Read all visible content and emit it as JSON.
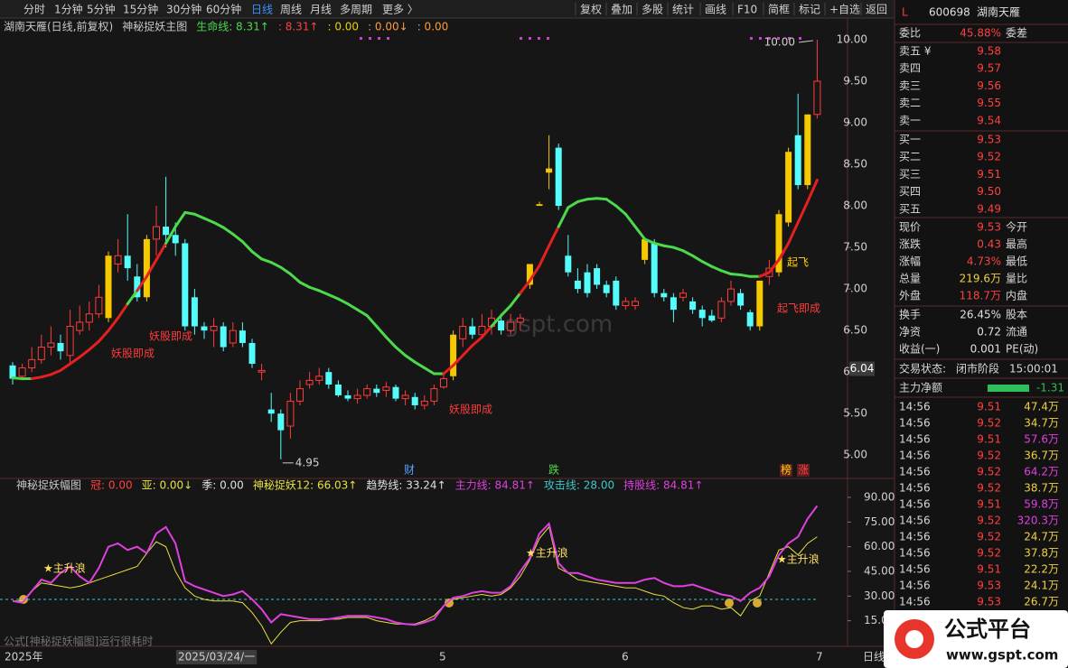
{
  "toolbar": {
    "left": [
      "分时",
      "1分钟",
      "5分钟",
      "15分钟",
      "30分钟",
      "60分钟",
      "日线",
      "周线",
      "月线",
      "多周期",
      "更多 〉"
    ],
    "active": 6,
    "right": [
      "复权",
      "叠加",
      "多股",
      "统计",
      "画线",
      "F10",
      "简框",
      "标记",
      "+自选",
      "返回"
    ]
  },
  "chart_data": [
    {
      "type": "candlestick",
      "header": [
        {
          "text": "湖南天雁(日线,前复权)",
          "color": "#c8c8c8"
        },
        {
          "text": "神秘捉妖主图",
          "color": "#c8c8c8"
        },
        {
          "text": "生命线: 8.31↑",
          "color": "#4cd94c"
        },
        {
          "text": ": 8.31↑",
          "color": "#ff4040"
        },
        {
          "text": ": 0.00",
          "color": "#e8d000"
        },
        {
          "text": ": 0.00↓",
          "color": "#ff9a3c"
        },
        {
          "text": ": 0.00",
          "color": "#ff9a3c"
        }
      ],
      "ylim": [
        4.72,
        10.26
      ],
      "yticks": [
        {
          "value": 5,
          "label": "5.00"
        },
        {
          "value": 5.5,
          "label": "5.50"
        },
        {
          "value": 6,
          "label": "6.00"
        },
        {
          "value": 6.5,
          "label": "6.50"
        },
        {
          "value": 7,
          "label": "7.00"
        },
        {
          "value": 7.5,
          "label": "7.50"
        },
        {
          "value": 8,
          "label": "8.00"
        },
        {
          "value": 8.5,
          "label": "8.50"
        },
        {
          "value": 9,
          "label": "9.00"
        },
        {
          "value": 9.5,
          "label": "9.50"
        },
        {
          "value": 10,
          "label": "10.00"
        }
      ],
      "open": [
        6.08,
        5.95,
        6.05,
        6.15,
        6.3,
        6.35,
        6.2,
        6.5,
        6.6,
        6.7,
        6.65,
        7.3,
        7.4,
        7.15,
        6.9,
        7.6,
        7.75,
        7.65,
        7.55,
        6.9,
        6.55,
        6.5,
        6.55,
        6.35,
        6.5,
        6.35,
        6.0,
        5.55,
        5.5,
        5.35,
        5.65,
        5.85,
        5.9,
        6.0,
        5.85,
        5.72,
        5.68,
        5.72,
        5.8,
        5.78,
        5.82,
        5.68,
        5.7,
        5.6,
        5.65,
        5.82,
        5.95,
        6.4,
        6.55,
        6.45,
        6.55,
        6.62,
        6.5,
        6.6,
        7.05,
        8.0,
        8.4,
        8.7,
        7.4,
        7.1,
        7.2,
        7.25,
        7.05,
        7.1,
        6.8,
        6.8,
        7.35,
        7.55,
        6.95,
        6.9,
        6.9,
        6.85,
        6.75,
        6.68,
        6.65,
        6.85,
        6.95,
        6.72,
        6.55,
        7.15,
        7.2,
        7.8,
        8.85,
        8.25,
        9.1
      ],
      "close": [
        5.92,
        6.05,
        6.15,
        6.3,
        6.35,
        6.25,
        6.55,
        6.6,
        6.7,
        6.9,
        7.4,
        7.4,
        7.25,
        6.9,
        7.6,
        7.75,
        7.65,
        7.55,
        6.55,
        6.55,
        6.5,
        6.55,
        6.3,
        6.5,
        6.35,
        6.1,
        6.02,
        5.5,
        5.3,
        5.65,
        5.8,
        5.9,
        5.95,
        5.85,
        5.72,
        5.68,
        5.72,
        5.8,
        5.75,
        5.82,
        5.68,
        5.72,
        5.6,
        5.65,
        5.8,
        5.92,
        6.45,
        6.55,
        6.45,
        6.55,
        6.65,
        6.5,
        6.6,
        6.65,
        7.3,
        8.02,
        8.45,
        8.0,
        7.2,
        7.0,
        6.95,
        7.05,
        6.95,
        6.8,
        6.85,
        6.85,
        7.6,
        6.95,
        6.9,
        6.75,
        6.95,
        6.75,
        6.65,
        6.62,
        6.85,
        7.0,
        6.8,
        6.55,
        7.1,
        7.25,
        7.9,
        8.65,
        8.25,
        9.1,
        9.5
      ],
      "low": [
        5.85,
        5.9,
        6.0,
        6.1,
        6.2,
        6.15,
        6.1,
        6.45,
        6.5,
        6.65,
        6.6,
        7.2,
        7.1,
        6.85,
        6.85,
        7.4,
        7.5,
        7.4,
        6.5,
        6.45,
        6.4,
        6.3,
        6.25,
        6.3,
        6.3,
        6.05,
        5.9,
        5.4,
        4.95,
        5.2,
        5.6,
        5.8,
        5.85,
        5.8,
        5.7,
        5.65,
        5.62,
        5.68,
        5.7,
        5.7,
        5.65,
        5.6,
        5.55,
        5.55,
        5.6,
        5.8,
        5.9,
        6.3,
        6.4,
        6.4,
        6.45,
        6.45,
        6.45,
        6.5,
        7.0,
        8.0,
        8.2,
        7.95,
        7.15,
        6.95,
        6.9,
        7.0,
        6.9,
        6.75,
        6.75,
        6.75,
        7.3,
        6.9,
        6.85,
        6.6,
        6.85,
        6.7,
        6.55,
        6.6,
        6.6,
        6.8,
        6.75,
        6.5,
        6.5,
        7.05,
        7.15,
        7.75,
        8.2,
        8.2,
        9.05
      ],
      "high": [
        6.12,
        6.1,
        6.3,
        6.45,
        6.55,
        6.45,
        6.75,
        6.8,
        6.85,
        7.05,
        7.45,
        7.6,
        7.9,
        7.3,
        7.65,
        8.0,
        8.35,
        7.8,
        7.6,
        7.0,
        6.6,
        6.65,
        6.6,
        6.6,
        6.6,
        6.4,
        6.1,
        5.75,
        5.55,
        5.75,
        5.9,
        6.0,
        6.05,
        6.05,
        5.9,
        5.78,
        5.8,
        5.85,
        5.85,
        5.88,
        5.85,
        5.78,
        5.75,
        5.72,
        5.85,
        6.0,
        6.5,
        6.65,
        6.65,
        6.7,
        6.75,
        6.7,
        6.7,
        6.7,
        7.3,
        8.05,
        8.85,
        8.75,
        7.65,
        7.25,
        7.3,
        7.3,
        7.1,
        7.15,
        6.9,
        6.9,
        7.6,
        7.6,
        7.0,
        6.95,
        7.0,
        6.9,
        6.8,
        6.75,
        6.9,
        7.1,
        7.0,
        6.75,
        7.1,
        7.35,
        7.95,
        8.7,
        9.35,
        9.1,
        10.0
      ],
      "signal_candles": [
        10,
        14,
        46,
        54,
        55,
        56,
        66,
        78,
        80,
        81,
        83
      ],
      "signal_color": "#f5c800",
      "up_color": "#ff3b3b",
      "down_color": "#54fcfc",
      "life_line": {
        "values": [
          5.93,
          5.92,
          5.92,
          5.94,
          5.97,
          6.02,
          6.1,
          6.18,
          6.27,
          6.37,
          6.5,
          6.65,
          6.82,
          6.98,
          7.15,
          7.35,
          7.55,
          7.75,
          7.92,
          7.9,
          7.85,
          7.8,
          7.74,
          7.66,
          7.57,
          7.45,
          7.36,
          7.32,
          7.26,
          7.18,
          7.08,
          7.02,
          6.98,
          6.93,
          6.88,
          6.82,
          6.75,
          6.68,
          6.55,
          6.42,
          6.3,
          6.2,
          6.12,
          6.05,
          5.98,
          5.98,
          6.08,
          6.2,
          6.32,
          6.42,
          6.55,
          6.68,
          6.8,
          6.95,
          7.1,
          7.28,
          7.52,
          7.75,
          7.98,
          8.05,
          8.08,
          8.09,
          8.08,
          8.0,
          7.9,
          7.75,
          7.6,
          7.55,
          7.52,
          7.5,
          7.46,
          7.4,
          7.33,
          7.27,
          7.22,
          7.18,
          7.17,
          7.15,
          7.15,
          7.2,
          7.35,
          7.55,
          7.8,
          8.05,
          8.31
        ],
        "color_up": "#e52020",
        "color_down": "#4cd94c"
      },
      "cursor_price": 6.04,
      "low_label": 4.95,
      "high_label": {
        "value": 10,
        "label": "10.00"
      },
      "annotations": [
        "妖股即成",
        "妖股即成",
        "妖股即成",
        "起飞即成",
        "起飞"
      ],
      "event_marks": [
        "财",
        "跌",
        "榜",
        "涨"
      ],
      "watermark": "gspt.com"
    },
    {
      "type": "line",
      "header": [
        {
          "text": "神秘捉妖幅图",
          "color": "#c8c8c8"
        },
        {
          "text": "冠: 0.00",
          "color": "#ff4040"
        },
        {
          "text": "亚: 0.00↓",
          "color": "#e8e040"
        },
        {
          "text": "季: 0.00",
          "color": "#e0e0e0"
        },
        {
          "text": "神秘捉妖12: 66.03↑",
          "color": "#e8e040"
        },
        {
          "text": "趋势线: 33.24↑",
          "color": "#e0e0e0"
        },
        {
          "text": "主力线: 84.81↑",
          "color": "#e040e0"
        },
        {
          "text": "攻击线: 28.00",
          "color": "#3cc8c8"
        },
        {
          "text": "持股线: 84.81↑",
          "color": "#e040e0"
        }
      ],
      "ylim": [
        0,
        96
      ],
      "yticks": [
        {
          "value": 15,
          "label": "15.00"
        },
        {
          "value": 30,
          "label": "30.00"
        },
        {
          "value": 45,
          "label": "45.00"
        },
        {
          "value": 60,
          "label": "60.00"
        },
        {
          "value": 75,
          "label": "75.00"
        },
        {
          "value": 90,
          "label": "90.00"
        }
      ],
      "series": [
        {
          "color": "#e8e040",
          "values": [
            27,
            27,
            33,
            38,
            37,
            36,
            35,
            36,
            38,
            40,
            42,
            44,
            46,
            48,
            56,
            63,
            60,
            45,
            35,
            30,
            28,
            27,
            27,
            27,
            26,
            20,
            12,
            1,
            8,
            14,
            15,
            15,
            15,
            16,
            16,
            17,
            17,
            17,
            15,
            14,
            13,
            13,
            13,
            15,
            18,
            24,
            28,
            29,
            30,
            31,
            30,
            31,
            35,
            42,
            52,
            65,
            72,
            47,
            44,
            40,
            39,
            38,
            37,
            36,
            35,
            35,
            33,
            31,
            30,
            26,
            23,
            22,
            24,
            24,
            22,
            23,
            18,
            27,
            30,
            44,
            58,
            60,
            55,
            62,
            66.03
          ]
        },
        {
          "color": "#e040e0",
          "values": [
            27,
            26,
            33,
            40,
            38,
            44,
            48,
            42,
            38,
            47,
            60,
            62,
            58,
            60,
            56,
            68,
            72,
            62,
            39,
            36,
            34,
            32,
            30,
            31,
            33,
            28,
            22,
            14,
            19,
            18,
            17,
            16,
            16,
            16,
            17,
            18,
            18,
            18,
            17,
            16,
            14,
            13,
            12.5,
            14,
            16,
            24,
            29,
            30,
            32,
            33,
            32,
            32,
            36,
            45,
            53,
            68,
            74,
            50,
            44,
            44,
            42,
            40,
            39,
            38,
            38,
            38,
            40,
            41,
            38,
            36,
            36,
            37,
            35,
            33,
            31,
            30,
            27,
            32,
            35,
            42,
            55,
            62,
            66,
            77,
            84.81
          ]
        }
      ],
      "reference_line": {
        "value": 28,
        "color": "#3cc8c8"
      },
      "annotations": [
        "★主升浪",
        "★主升浪",
        "★主升浪"
      ]
    }
  ],
  "x_axis": {
    "labels": [
      "2025年",
      "2025/03/24/一",
      "5",
      "6",
      "7",
      "日线"
    ]
  },
  "footer": "公式[神秘捉妖幅图]运行很耗时",
  "panel": {
    "flag": "L",
    "code": "600698",
    "name": "湖南天雁",
    "ratio": {
      "label": "委比",
      "value": "45.88%",
      "label2": "委差"
    },
    "asks": [
      {
        "label": "卖五 ¥",
        "price": "9.58"
      },
      {
        "label": "卖四",
        "price": "9.57"
      },
      {
        "label": "卖三",
        "price": "9.56"
      },
      {
        "label": "卖二",
        "price": "9.55"
      },
      {
        "label": "卖一",
        "price": "9.54"
      }
    ],
    "bids": [
      {
        "label": "买一",
        "price": "9.53"
      },
      {
        "label": "买二",
        "price": "9.52"
      },
      {
        "label": "买三",
        "price": "9.51"
      },
      {
        "label": "买四",
        "price": "9.50"
      },
      {
        "label": "买五",
        "price": "9.49"
      }
    ],
    "stats": [
      {
        "label": "现价",
        "value": "9.53",
        "label2": "今开",
        "color": "#ff4040"
      },
      {
        "label": "涨跌",
        "value": "0.43",
        "label2": "最高",
        "color": "#ff4040"
      },
      {
        "label": "涨幅",
        "value": "4.73%",
        "label2": "最低",
        "color": "#ff4040"
      },
      {
        "label": "总量",
        "value": "219.6万",
        "label2": "量比",
        "color": "#f0d040"
      },
      {
        "label": "外盘",
        "value": "118.7万",
        "label2": "内盘",
        "color": "#ff4040"
      },
      {
        "label": "换手",
        "value": "26.45%",
        "label2": "股本",
        "color": "#e0e0e0"
      },
      {
        "label": "净资",
        "value": "0.72",
        "label2": "流通",
        "color": "#e0e0e0"
      },
      {
        "label": "收益(一)",
        "value": "0.001",
        "label2": "PE(动)",
        "color": "#e0e0e0"
      }
    ],
    "status": {
      "label": "交易状态:",
      "phase": "闭市阶段",
      "time": "15:00:01"
    },
    "net": {
      "label": "主力净额",
      "value": "-1.31"
    },
    "trades": [
      {
        "time": "14:56",
        "price": "9.51",
        "volume": "47.4万",
        "color": "#f0d040"
      },
      {
        "time": "14:56",
        "price": "9.52",
        "volume": "34.7万",
        "color": "#f0d040"
      },
      {
        "time": "14:56",
        "price": "9.51",
        "volume": "57.6万",
        "color": "#e040e0"
      },
      {
        "time": "14:56",
        "price": "9.52",
        "volume": "36.7万",
        "color": "#f0d040"
      },
      {
        "time": "14:56",
        "price": "9.52",
        "volume": "64.2万",
        "color": "#e040e0"
      },
      {
        "time": "14:56",
        "price": "9.52",
        "volume": "38.7万",
        "color": "#f0d040"
      },
      {
        "time": "14:56",
        "price": "9.51",
        "volume": "59.8万",
        "color": "#e040e0"
      },
      {
        "time": "14:56",
        "price": "9.52",
        "volume": "320.3万",
        "color": "#e040e0"
      },
      {
        "time": "14:56",
        "price": "9.52",
        "volume": "24.7万",
        "color": "#f0d040"
      },
      {
        "time": "14:56",
        "price": "9.52",
        "volume": "37.8万",
        "color": "#f0d040"
      },
      {
        "time": "14:56",
        "price": "9.51",
        "volume": "22.2万",
        "color": "#f0d040"
      },
      {
        "time": "14:56",
        "price": "9.53",
        "volume": "24.1万",
        "color": "#f0d040"
      },
      {
        "time": "14:56",
        "price": "9.53",
        "volume": "26.7万",
        "color": "#f0d040"
      }
    ]
  },
  "logo": {
    "title": "公式平台",
    "url": "www.gspt.com"
  }
}
